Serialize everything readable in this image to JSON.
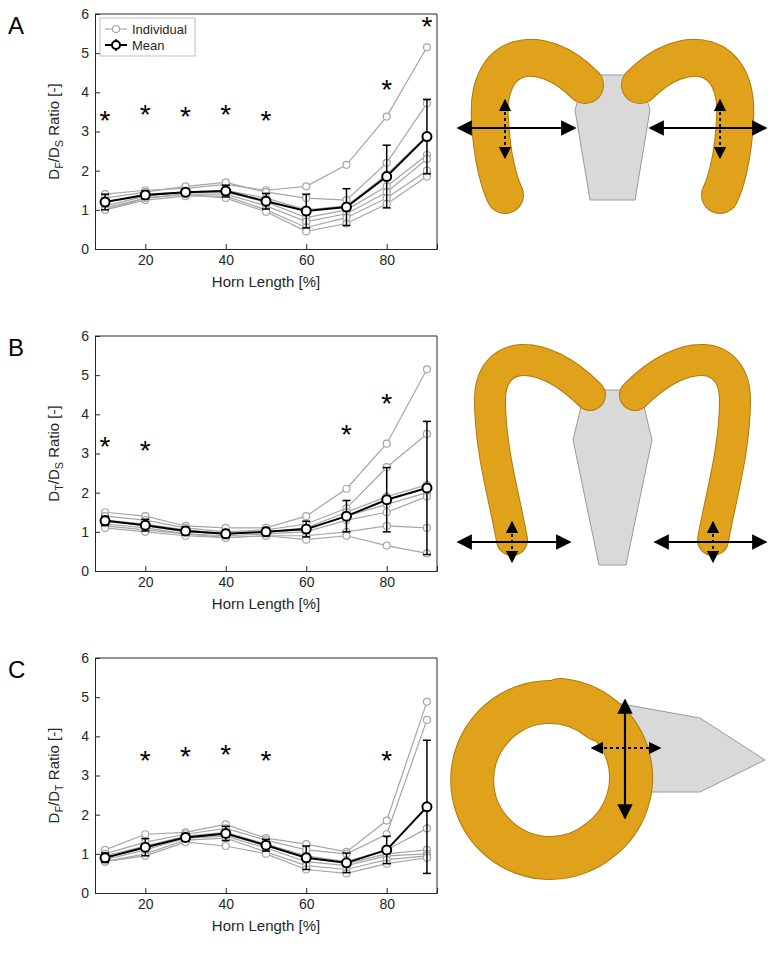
{
  "chart_data": [
    {
      "type": "line",
      "panel": "A",
      "xlabel": "Horn Length [%]",
      "ylabel": "DF/DS Ratio [-]",
      "x": [
        10,
        20,
        30,
        40,
        50,
        60,
        70,
        80,
        90
      ],
      "xlim": [
        7.5,
        92.5
      ],
      "xticks": [
        20,
        40,
        60,
        80
      ],
      "ylim": [
        0,
        6
      ],
      "yticks": [
        0,
        1,
        2,
        3,
        4,
        5,
        6
      ],
      "grid": false,
      "legend": "upper left",
      "series": [
        {
          "name": "Individual",
          "color": "#a6a6a6",
          "marker": "circle",
          "values": [
            1.4,
            1.5,
            1.55,
            1.65,
            1.5,
            1.6,
            2.15,
            3.38,
            5.15
          ]
        },
        {
          "color": "#a6a6a6",
          "marker": "circle",
          "values": [
            1.3,
            1.45,
            1.6,
            1.7,
            1.45,
            1.3,
            1.25,
            2.2,
            3.72
          ]
        },
        {
          "color": "#a6a6a6",
          "marker": "circle",
          "values": [
            1.2,
            1.4,
            1.45,
            1.5,
            1.3,
            1.0,
            1.1,
            1.9,
            2.9
          ]
        },
        {
          "color": "#a6a6a6",
          "marker": "circle",
          "values": [
            1.1,
            1.35,
            1.45,
            1.45,
            1.2,
            0.8,
            1.0,
            1.6,
            2.4
          ]
        },
        {
          "color": "#a6a6a6",
          "marker": "circle",
          "values": [
            1.05,
            1.3,
            1.4,
            1.4,
            1.1,
            0.7,
            0.9,
            1.45,
            2.3
          ]
        },
        {
          "color": "#a6a6a6",
          "marker": "circle",
          "values": [
            1.0,
            1.25,
            1.35,
            1.35,
            1.0,
            0.55,
            0.8,
            1.3,
            2.0
          ]
        },
        {
          "color": "#a6a6a6",
          "marker": "circle",
          "values": [
            1.0,
            1.3,
            1.4,
            1.3,
            0.95,
            0.45,
            0.65,
            1.15,
            1.85
          ]
        },
        {
          "name": "Mean",
          "color": "#000000",
          "marker": "circle",
          "values": [
            1.2,
            1.38,
            1.45,
            1.48,
            1.22,
            0.97,
            1.07,
            1.85,
            2.87
          ],
          "error": [
            0.2,
            0.1,
            0.08,
            0.15,
            0.2,
            0.43,
            0.47,
            0.8,
            0.95
          ]
        }
      ],
      "annotations": [
        {
          "x": 10,
          "y": 3.4,
          "text": "*"
        },
        {
          "x": 20,
          "y": 3.55,
          "text": "*"
        },
        {
          "x": 30,
          "y": 3.5,
          "text": "*"
        },
        {
          "x": 40,
          "y": 3.55,
          "text": "*"
        },
        {
          "x": 50,
          "y": 3.4,
          "text": "*"
        },
        {
          "x": 80,
          "y": 4.2,
          "text": "*"
        },
        {
          "x": 90,
          "y": 5.8,
          "text": "*"
        }
      ]
    },
    {
      "type": "line",
      "panel": "B",
      "xlabel": "Horn Length [%]",
      "ylabel": "DT/DS Ratio [-]",
      "x": [
        10,
        20,
        30,
        40,
        50,
        60,
        70,
        80,
        90
      ],
      "xlim": [
        7.5,
        92.5
      ],
      "xticks": [
        20,
        40,
        60,
        80
      ],
      "ylim": [
        0,
        6
      ],
      "yticks": [
        0,
        1,
        2,
        3,
        4,
        5,
        6
      ],
      "grid": false,
      "series": [
        {
          "color": "#a6a6a6",
          "marker": "circle",
          "values": [
            1.5,
            1.4,
            1.15,
            1.1,
            1.1,
            1.4,
            2.1,
            3.25,
            5.15
          ]
        },
        {
          "color": "#a6a6a6",
          "marker": "circle",
          "values": [
            1.4,
            1.3,
            1.1,
            1.0,
            1.05,
            1.2,
            1.6,
            2.65,
            3.5
          ]
        },
        {
          "color": "#a6a6a6",
          "marker": "circle",
          "values": [
            1.3,
            1.2,
            1.05,
            0.95,
            1.0,
            1.1,
            1.5,
            1.9,
            2.2
          ]
        },
        {
          "color": "#a6a6a6",
          "marker": "circle",
          "values": [
            1.3,
            1.15,
            1.0,
            0.95,
            1.0,
            1.05,
            1.4,
            1.7,
            2.0
          ]
        },
        {
          "color": "#a6a6a6",
          "marker": "circle",
          "values": [
            1.2,
            1.1,
            0.95,
            0.9,
            0.95,
            1.0,
            1.3,
            1.5,
            1.9
          ]
        },
        {
          "color": "#a6a6a6",
          "marker": "circle",
          "values": [
            1.15,
            1.05,
            0.95,
            0.85,
            0.9,
            0.9,
            1.0,
            1.15,
            1.1
          ]
        },
        {
          "color": "#a6a6a6",
          "marker": "circle",
          "values": [
            1.1,
            1.0,
            0.9,
            0.85,
            0.9,
            0.8,
            0.9,
            0.65,
            0.45
          ]
        },
        {
          "color": "#000000",
          "marker": "circle",
          "values": [
            1.28,
            1.17,
            1.02,
            0.95,
            1.0,
            1.07,
            1.4,
            1.82,
            2.12
          ],
          "error": [
            0.12,
            0.15,
            0.1,
            0.1,
            0.1,
            0.2,
            0.4,
            0.82,
            1.7
          ]
        }
      ],
      "annotations": [
        {
          "x": 10,
          "y": 3.3,
          "text": "*"
        },
        {
          "x": 20,
          "y": 3.2,
          "text": "*"
        },
        {
          "x": 70,
          "y": 3.6,
          "text": "*"
        },
        {
          "x": 80,
          "y": 4.4,
          "text": "*"
        }
      ]
    },
    {
      "type": "line",
      "panel": "C",
      "xlabel": "Horn Length [%]",
      "ylabel": "DF/DT Ratio [-]",
      "x": [
        10,
        20,
        30,
        40,
        50,
        60,
        70,
        80,
        90
      ],
      "xlim": [
        7.5,
        92.5
      ],
      "xticks": [
        20,
        40,
        60,
        80
      ],
      "ylim": [
        0,
        6
      ],
      "yticks": [
        0,
        1,
        2,
        3,
        4,
        5,
        6
      ],
      "grid": false,
      "series": [
        {
          "color": "#a6a6a6",
          "marker": "circle",
          "values": [
            1.1,
            1.5,
            1.55,
            1.75,
            1.4,
            1.25,
            1.05,
            1.85,
            4.88
          ]
        },
        {
          "color": "#a6a6a6",
          "marker": "circle",
          "values": [
            1.0,
            1.3,
            1.5,
            1.65,
            1.35,
            1.1,
            1.0,
            1.5,
            4.42
          ]
        },
        {
          "color": "#a6a6a6",
          "marker": "circle",
          "values": [
            0.95,
            1.2,
            1.45,
            1.55,
            1.25,
            0.95,
            0.8,
            1.1,
            1.65
          ]
        },
        {
          "color": "#a6a6a6",
          "marker": "circle",
          "values": [
            0.9,
            1.15,
            1.4,
            1.5,
            1.2,
            0.9,
            0.75,
            1.0,
            1.1
          ]
        },
        {
          "color": "#a6a6a6",
          "marker": "circle",
          "values": [
            0.85,
            1.1,
            1.4,
            1.45,
            1.15,
            0.8,
            0.7,
            0.95,
            1.0
          ]
        },
        {
          "color": "#a6a6a6",
          "marker": "circle",
          "values": [
            0.8,
            1.0,
            1.35,
            1.4,
            1.05,
            0.7,
            0.6,
            0.85,
            0.95
          ]
        },
        {
          "color": "#a6a6a6",
          "marker": "circle",
          "values": [
            0.8,
            0.95,
            1.3,
            1.2,
            1.0,
            0.6,
            0.5,
            0.75,
            0.9
          ]
        },
        {
          "color": "#000000",
          "marker": "circle",
          "values": [
            0.9,
            1.17,
            1.42,
            1.52,
            1.22,
            0.9,
            0.77,
            1.1,
            2.2
          ],
          "error": [
            0.12,
            0.22,
            0.1,
            0.18,
            0.15,
            0.3,
            0.25,
            0.35,
            1.7
          ]
        }
      ],
      "annotations": [
        {
          "x": 20,
          "y": 3.5,
          "text": "*"
        },
        {
          "x": 30,
          "y": 3.6,
          "text": "*"
        },
        {
          "x": 40,
          "y": 3.65,
          "text": "*"
        },
        {
          "x": 50,
          "y": 3.5,
          "text": "*"
        },
        {
          "x": 80,
          "y": 3.5,
          "text": "*"
        }
      ]
    }
  ]
}
